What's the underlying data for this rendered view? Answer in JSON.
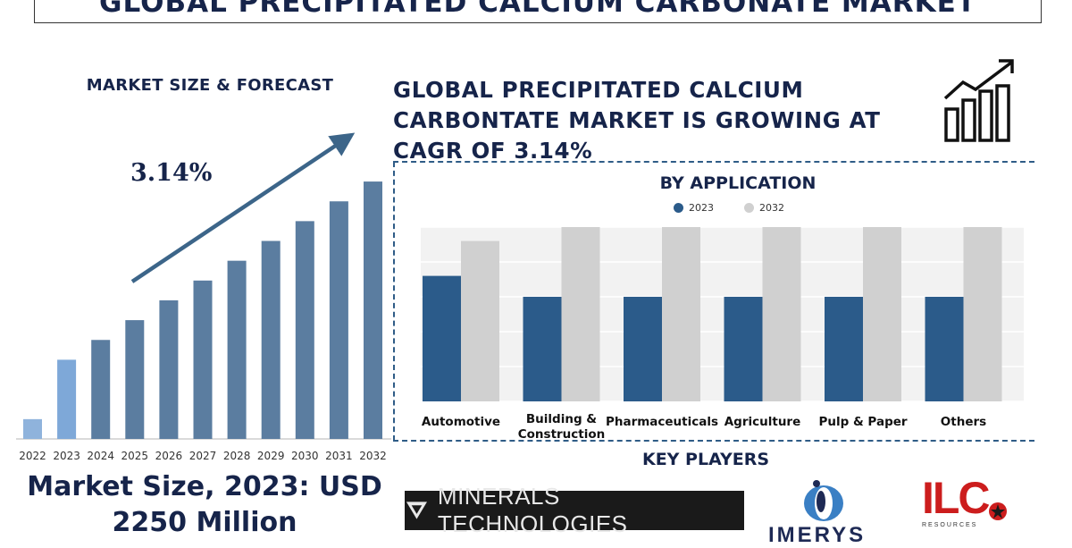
{
  "title": "GLOBAL PRECIPITATED CALCIUM CARBONATE MARKET",
  "left_heading": "MARKET SIZE & FORECAST",
  "cagr_value": "3.14%",
  "headline": "GLOBAL PRECIPITATED CALCIUM CARBONTATE MARKET IS GROWING AT CAGR OF 3.14%",
  "market_size_line1": "Market Size, 2023: USD",
  "market_size_line2": "2250 Million",
  "application_heading": "BY APPLICATION",
  "key_players_heading": "KEY PLAYERS",
  "key_players": [
    "MINERALS TECHNOLOGIES",
    "IMERYS",
    "ILC",
    "RESOURCES"
  ],
  "colors": {
    "navy": "#16244a",
    "bar_forecast": "#5b7da0",
    "bar_2022": "#8fb3dc",
    "bar_2023": "#7ea8d8",
    "series_2023": "#2b5b8a",
    "series_2032": "#d0d0d0",
    "arrow": "#3c6589",
    "ilc_red": "#cc1d1d"
  },
  "chart_data": [
    {
      "type": "bar",
      "title": "MARKET SIZE & FORECAST",
      "categories": [
        "2022",
        "2023",
        "2024",
        "2025",
        "2026",
        "2027",
        "2028",
        "2029",
        "2030",
        "2031",
        "2032"
      ],
      "values": [
        1,
        4,
        5,
        6,
        7,
        8,
        9,
        10,
        11,
        12,
        13
      ],
      "ylim": [
        0,
        13.5
      ],
      "annotation": "3.14%",
      "grid": false
    },
    {
      "type": "bar",
      "title": "BY APPLICATION",
      "categories": [
        "Automotive",
        "Building & Construction",
        "Pharmaceuticals",
        "Agriculture",
        "Pulp & Paper",
        "Others"
      ],
      "series": [
        {
          "name": "2023",
          "values": [
            3.6,
            3.0,
            3.0,
            3.0,
            3.0,
            3.0
          ]
        },
        {
          "name": "2032",
          "values": [
            4.6,
            5.0,
            5.0,
            5.0,
            5.0,
            5.0
          ]
        }
      ],
      "ylim": [
        0,
        5
      ],
      "grid": true,
      "legend": "top"
    }
  ]
}
